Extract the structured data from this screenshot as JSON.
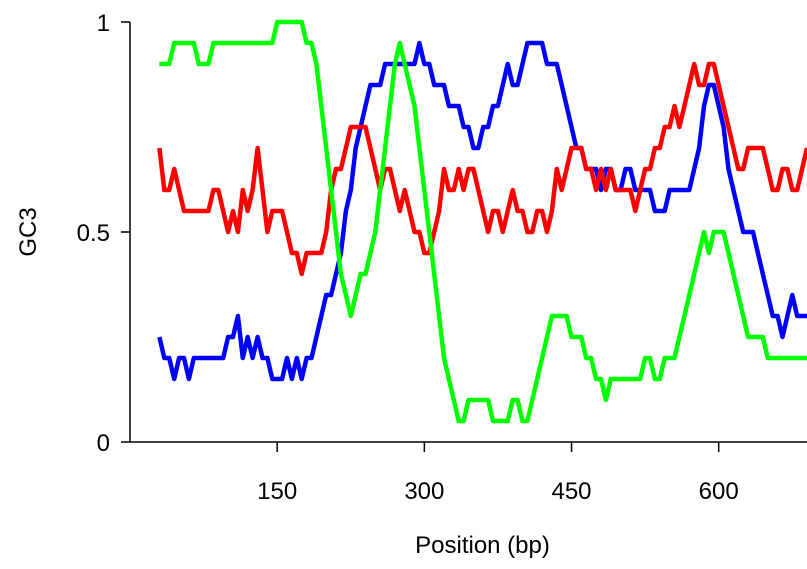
{
  "chart_data": {
    "type": "line",
    "xlabel": "Position (bp)",
    "ylabel": "GC3",
    "xlim": [
      0,
      690
    ],
    "ylim": [
      0,
      1
    ],
    "xticks": [
      150,
      300,
      450,
      600
    ],
    "yticks": [
      0,
      0.5,
      1
    ],
    "ytick_labels": [
      "0",
      "0.5",
      "1"
    ],
    "grid": false,
    "legend": "none",
    "series": [
      {
        "color": "#0000ff",
        "x": [
          30,
          35,
          40,
          45,
          50,
          55,
          60,
          65,
          70,
          75,
          80,
          85,
          90,
          95,
          100,
          105,
          110,
          115,
          120,
          125,
          130,
          135,
          140,
          145,
          150,
          155,
          160,
          165,
          170,
          175,
          180,
          185,
          190,
          195,
          200,
          205,
          210,
          215,
          220,
          225,
          230,
          235,
          240,
          245,
          250,
          255,
          260,
          265,
          270,
          275,
          280,
          285,
          290,
          295,
          300,
          305,
          310,
          315,
          320,
          325,
          330,
          335,
          340,
          345,
          350,
          355,
          360,
          365,
          370,
          375,
          380,
          385,
          390,
          395,
          400,
          405,
          410,
          415,
          420,
          425,
          430,
          435,
          440,
          445,
          450,
          455,
          460,
          465,
          470,
          475,
          480,
          485,
          490,
          495,
          500,
          505,
          510,
          515,
          520,
          525,
          530,
          535,
          540,
          545,
          550,
          555,
          560,
          565,
          570,
          575,
          580,
          585,
          590,
          595,
          600,
          605,
          610,
          615,
          620,
          625,
          630,
          635,
          640,
          645,
          650,
          655,
          660,
          665,
          670,
          675,
          680,
          685,
          690
        ],
        "y": [
          0.25,
          0.2,
          0.2,
          0.15,
          0.2,
          0.2,
          0.15,
          0.2,
          0.2,
          0.2,
          0.2,
          0.2,
          0.2,
          0.2,
          0.25,
          0.25,
          0.3,
          0.2,
          0.25,
          0.2,
          0.25,
          0.2,
          0.2,
          0.15,
          0.15,
          0.15,
          0.2,
          0.15,
          0.2,
          0.15,
          0.2,
          0.2,
          0.25,
          0.3,
          0.35,
          0.35,
          0.4,
          0.45,
          0.55,
          0.6,
          0.7,
          0.75,
          0.8,
          0.85,
          0.85,
          0.85,
          0.9,
          0.9,
          0.9,
          0.9,
          0.9,
          0.9,
          0.9,
          0.95,
          0.9,
          0.9,
          0.85,
          0.85,
          0.85,
          0.8,
          0.8,
          0.8,
          0.75,
          0.75,
          0.7,
          0.7,
          0.75,
          0.75,
          0.8,
          0.8,
          0.85,
          0.9,
          0.85,
          0.85,
          0.9,
          0.95,
          0.95,
          0.95,
          0.95,
          0.9,
          0.9,
          0.9,
          0.85,
          0.8,
          0.75,
          0.7,
          0.7,
          0.65,
          0.65,
          0.65,
          0.6,
          0.65,
          0.65,
          0.6,
          0.6,
          0.65,
          0.65,
          0.6,
          0.6,
          0.6,
          0.6,
          0.55,
          0.55,
          0.55,
          0.6,
          0.6,
          0.6,
          0.6,
          0.6,
          0.65,
          0.7,
          0.8,
          0.85,
          0.85,
          0.8,
          0.75,
          0.65,
          0.6,
          0.55,
          0.5,
          0.5,
          0.5,
          0.45,
          0.4,
          0.35,
          0.3,
          0.3,
          0.25,
          0.3,
          0.35,
          0.3,
          0.3,
          0.3
        ]
      },
      {
        "color": "#ff0000",
        "x": [
          30,
          35,
          40,
          45,
          50,
          55,
          60,
          65,
          70,
          75,
          80,
          85,
          90,
          95,
          100,
          105,
          110,
          115,
          120,
          125,
          130,
          135,
          140,
          145,
          150,
          155,
          160,
          165,
          170,
          175,
          180,
          185,
          190,
          195,
          200,
          205,
          210,
          215,
          220,
          225,
          230,
          235,
          240,
          245,
          250,
          255,
          260,
          265,
          270,
          275,
          280,
          285,
          290,
          295,
          300,
          305,
          310,
          315,
          320,
          325,
          330,
          335,
          340,
          345,
          350,
          355,
          360,
          365,
          370,
          375,
          380,
          385,
          390,
          395,
          400,
          405,
          410,
          415,
          420,
          425,
          430,
          435,
          440,
          445,
          450,
          455,
          460,
          465,
          470,
          475,
          480,
          485,
          490,
          495,
          500,
          505,
          510,
          515,
          520,
          525,
          530,
          535,
          540,
          545,
          550,
          555,
          560,
          565,
          570,
          575,
          580,
          585,
          590,
          595,
          600,
          605,
          610,
          615,
          620,
          625,
          630,
          635,
          640,
          645,
          650,
          655,
          660,
          665,
          670,
          675,
          680,
          685,
          690
        ],
        "y": [
          0.7,
          0.6,
          0.6,
          0.65,
          0.6,
          0.55,
          0.55,
          0.55,
          0.55,
          0.55,
          0.55,
          0.6,
          0.6,
          0.55,
          0.5,
          0.55,
          0.5,
          0.6,
          0.55,
          0.6,
          0.7,
          0.6,
          0.5,
          0.55,
          0.55,
          0.55,
          0.5,
          0.45,
          0.45,
          0.4,
          0.45,
          0.45,
          0.45,
          0.45,
          0.5,
          0.6,
          0.65,
          0.65,
          0.7,
          0.75,
          0.75,
          0.75,
          0.75,
          0.7,
          0.65,
          0.6,
          0.65,
          0.65,
          0.6,
          0.55,
          0.6,
          0.55,
          0.5,
          0.5,
          0.45,
          0.45,
          0.5,
          0.55,
          0.65,
          0.6,
          0.6,
          0.65,
          0.6,
          0.65,
          0.65,
          0.6,
          0.55,
          0.5,
          0.55,
          0.55,
          0.5,
          0.55,
          0.6,
          0.55,
          0.55,
          0.5,
          0.5,
          0.55,
          0.55,
          0.5,
          0.55,
          0.65,
          0.6,
          0.65,
          0.7,
          0.7,
          0.7,
          0.65,
          0.65,
          0.6,
          0.65,
          0.6,
          0.65,
          0.6,
          0.6,
          0.6,
          0.6,
          0.55,
          0.6,
          0.65,
          0.65,
          0.7,
          0.7,
          0.75,
          0.75,
          0.8,
          0.75,
          0.8,
          0.85,
          0.9,
          0.85,
          0.85,
          0.9,
          0.9,
          0.85,
          0.8,
          0.75,
          0.7,
          0.65,
          0.65,
          0.7,
          0.7,
          0.7,
          0.7,
          0.65,
          0.6,
          0.6,
          0.65,
          0.65,
          0.6,
          0.6,
          0.65,
          0.7
        ]
      },
      {
        "color": "#00ff00",
        "x": [
          30,
          35,
          40,
          45,
          50,
          55,
          60,
          65,
          70,
          75,
          80,
          85,
          90,
          95,
          100,
          105,
          110,
          115,
          120,
          125,
          130,
          135,
          140,
          145,
          150,
          155,
          160,
          165,
          170,
          175,
          180,
          185,
          190,
          195,
          200,
          205,
          210,
          215,
          220,
          225,
          230,
          235,
          240,
          245,
          250,
          255,
          260,
          265,
          270,
          275,
          280,
          285,
          290,
          295,
          300,
          305,
          310,
          315,
          320,
          325,
          330,
          335,
          340,
          345,
          350,
          355,
          360,
          365,
          370,
          375,
          380,
          385,
          390,
          395,
          400,
          405,
          410,
          415,
          420,
          425,
          430,
          435,
          440,
          445,
          450,
          455,
          460,
          465,
          470,
          475,
          480,
          485,
          490,
          495,
          500,
          505,
          510,
          515,
          520,
          525,
          530,
          535,
          540,
          545,
          550,
          555,
          560,
          565,
          570,
          575,
          580,
          585,
          590,
          595,
          600,
          605,
          610,
          615,
          620,
          625,
          630,
          635,
          640,
          645,
          650,
          655,
          660,
          665,
          670,
          675,
          680,
          685,
          690
        ],
        "y": [
          0.9,
          0.9,
          0.9,
          0.95,
          0.95,
          0.95,
          0.95,
          0.95,
          0.9,
          0.9,
          0.9,
          0.95,
          0.95,
          0.95,
          0.95,
          0.95,
          0.95,
          0.95,
          0.95,
          0.95,
          0.95,
          0.95,
          0.95,
          0.95,
          1,
          1,
          1,
          1,
          1,
          1,
          0.95,
          0.95,
          0.9,
          0.8,
          0.7,
          0.6,
          0.5,
          0.4,
          0.35,
          0.3,
          0.35,
          0.4,
          0.4,
          0.45,
          0.5,
          0.6,
          0.7,
          0.8,
          0.9,
          0.95,
          0.9,
          0.85,
          0.8,
          0.7,
          0.6,
          0.5,
          0.4,
          0.3,
          0.2,
          0.15,
          0.1,
          0.05,
          0.05,
          0.1,
          0.1,
          0.1,
          0.1,
          0.1,
          0.05,
          0.05,
          0.05,
          0.05,
          0.1,
          0.1,
          0.05,
          0.05,
          0.1,
          0.15,
          0.2,
          0.25,
          0.3,
          0.3,
          0.3,
          0.3,
          0.25,
          0.25,
          0.25,
          0.2,
          0.2,
          0.15,
          0.15,
          0.1,
          0.15,
          0.15,
          0.15,
          0.15,
          0.15,
          0.15,
          0.15,
          0.2,
          0.2,
          0.15,
          0.15,
          0.2,
          0.2,
          0.2,
          0.25,
          0.3,
          0.35,
          0.4,
          0.45,
          0.5,
          0.45,
          0.5,
          0.5,
          0.5,
          0.45,
          0.4,
          0.35,
          0.3,
          0.25,
          0.25,
          0.25,
          0.25,
          0.2,
          0.2,
          0.2,
          0.2,
          0.2,
          0.2,
          0.2,
          0.2,
          0.2
        ]
      }
    ]
  }
}
